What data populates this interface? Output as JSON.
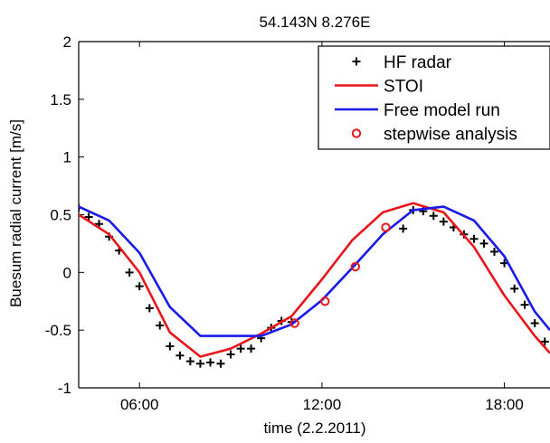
{
  "chart_data": {
    "type": "line",
    "title": "54.143N  8.276E",
    "xlabel": "time (2.2.2011)",
    "ylabel": "Buesum radial current [m/s]",
    "xlim": [
      4,
      19.5
    ],
    "ylim": [
      -1,
      2
    ],
    "x_ticks": [
      6,
      12,
      18
    ],
    "x_tick_labels": [
      "06:00",
      "12:00",
      "18:00"
    ],
    "y_ticks": [
      -1,
      -0.5,
      0,
      0.5,
      1,
      1.5,
      2
    ],
    "y_tick_labels": [
      "-1",
      "-0.5",
      "0",
      "0.5",
      "1",
      "1.5",
      "2"
    ],
    "grid": false,
    "legend_position": "top-right",
    "series": [
      {
        "name": "HF radar",
        "marker": "plus",
        "color": "#000000",
        "x": [
          4.0,
          4.33,
          4.67,
          5.0,
          5.33,
          5.67,
          6.0,
          6.33,
          6.67,
          7.0,
          7.33,
          7.67,
          8.0,
          8.33,
          8.67,
          9.0,
          9.33,
          9.67,
          10.0,
          10.33,
          10.67,
          11.0,
          14.67,
          15.0,
          15.33,
          15.67,
          16.0,
          16.33,
          16.67,
          17.0,
          17.33,
          17.67,
          18.0,
          18.33,
          18.67,
          19.0,
          19.33
        ],
        "y": [
          0.56,
          0.48,
          0.42,
          0.31,
          0.19,
          0.0,
          -0.12,
          -0.31,
          -0.46,
          -0.64,
          -0.72,
          -0.77,
          -0.79,
          -0.78,
          -0.79,
          -0.71,
          -0.66,
          -0.66,
          -0.57,
          -0.48,
          -0.42,
          -0.43,
          0.38,
          0.54,
          0.53,
          0.49,
          0.44,
          0.39,
          0.33,
          0.29,
          0.25,
          0.18,
          0.08,
          -0.14,
          -0.28,
          -0.44,
          -0.6
        ]
      },
      {
        "name": "STOI",
        "marker": "line",
        "color": "#e8151b",
        "x": [
          4.0,
          5.0,
          6.0,
          7.0,
          8.0,
          9.0,
          10.0,
          11.0,
          12.0,
          13.0,
          14.0,
          15.0,
          16.0,
          17.0,
          18.0,
          19.0,
          19.5
        ],
        "y": [
          0.5,
          0.33,
          0.0,
          -0.52,
          -0.73,
          -0.66,
          -0.53,
          -0.38,
          -0.06,
          0.28,
          0.52,
          0.6,
          0.52,
          0.22,
          -0.2,
          -0.55,
          -0.7
        ]
      },
      {
        "name": "Free model run",
        "marker": "line",
        "color": "#1a1ae8",
        "x": [
          4.0,
          5.0,
          6.0,
          7.0,
          8.0,
          9.0,
          10.0,
          11.0,
          12.0,
          13.0,
          14.0,
          15.0,
          16.0,
          17.0,
          18.0,
          19.0,
          19.5
        ],
        "y": [
          0.57,
          0.45,
          0.17,
          -0.3,
          -0.55,
          -0.55,
          -0.55,
          -0.45,
          -0.24,
          0.04,
          0.33,
          0.54,
          0.57,
          0.45,
          0.14,
          -0.34,
          -0.5
        ]
      },
      {
        "name": "stepwise analysis",
        "marker": "circle",
        "color": "#e8151b",
        "x": [
          11.1,
          12.1,
          13.1,
          14.1
        ],
        "y": [
          -0.44,
          -0.25,
          0.05,
          0.39
        ]
      }
    ]
  }
}
